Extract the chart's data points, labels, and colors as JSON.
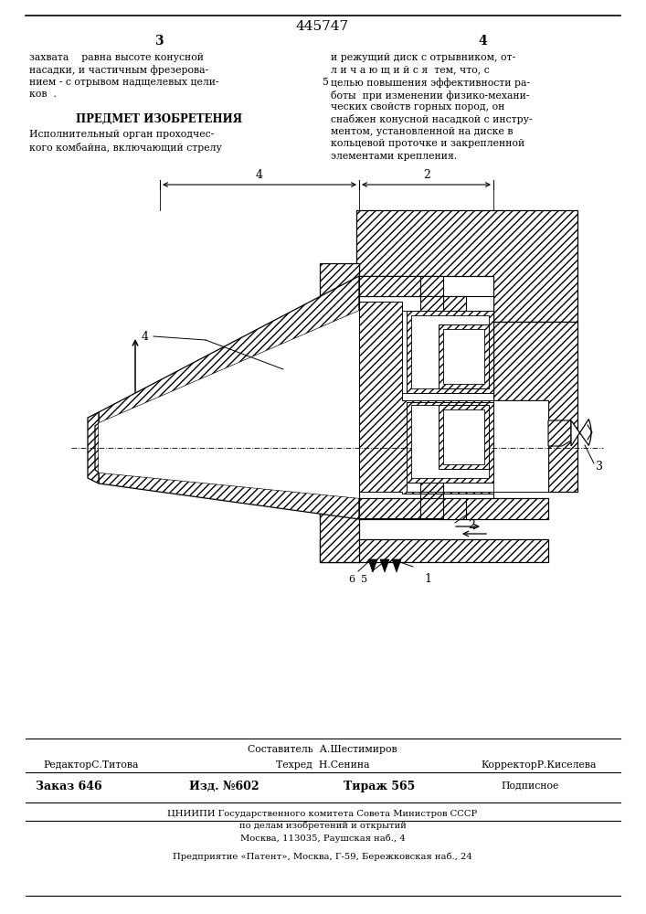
{
  "patent_number": "445747",
  "bg_color": "#ffffff",
  "page_left": "3",
  "page_right": "4",
  "col1_lines": [
    "захвата    равна высоте конусной",
    "насадки, и частичным фрезерова-",
    "нием - с отрывом надщелевых цели-",
    "ков  ."
  ],
  "col2_lines": [
    "и режущий диск с отрывником, от-",
    "л и ч а ю щ и й с я  тем, что, с",
    "целью повышения эффективности ра-",
    "боты  при изменении физико-механи-",
    "ческих свойств горных пород, он",
    "снабжен конусной насадкой с инстру-",
    "ментом, установленной на диске в",
    "кольцевой проточке и закрепленной",
    "элементами крепления."
  ],
  "section_title": "ПРЕДМЕТ ИЗОБРЕТЕНИЯ",
  "body1": "Исполнительный орган проходчес-",
  "body2": "кого комбайна, включающий стрелу",
  "footer_sestavitel": "Составитель  А.Шестимиров",
  "footer_redaktor": "РедакторС.Титова",
  "footer_tekhred": "Техред  Н.Сенина",
  "footer_korrektor": "КорректорР.Киселева",
  "footer_zakaz": "Заказ 646",
  "footer_izd": "Изд. №602",
  "footer_tirazh": "Тираж 565",
  "footer_podpisnoe": "Подписное",
  "footer_org": "ЦНИИПИ Государственного комитета Совета Министров СССР",
  "footer_org2": "по делам изобретений и открытий",
  "footer_addr": "Москва, 113035, Раушская наб., 4",
  "footer_predp": "Предприятие «Патент», Москва, Г-59, Бережковская наб., 24"
}
